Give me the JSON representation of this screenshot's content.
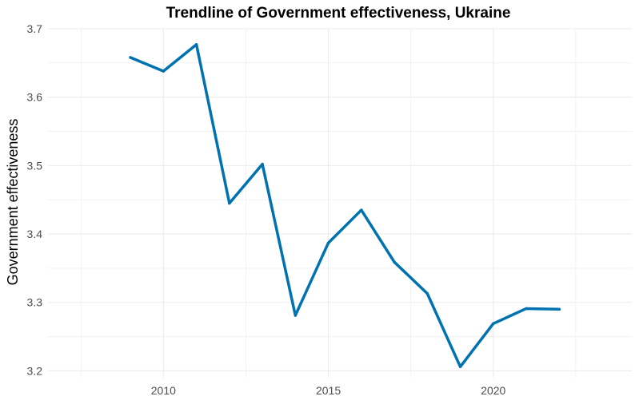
{
  "chart_data": {
    "type": "line",
    "title": "Trendline of Government effectiveness, Ukraine",
    "xlabel": "",
    "ylabel": "Government effectiveness",
    "x": [
      2009,
      2010,
      2011,
      2012,
      2013,
      2014,
      2015,
      2016,
      2017,
      2018,
      2019,
      2020,
      2021,
      2022
    ],
    "series": [
      {
        "values": [
          3.658,
          3.638,
          3.677,
          3.445,
          3.502,
          3.281,
          3.387,
          3.435,
          3.359,
          3.313,
          3.206,
          3.269,
          3.291,
          3.29
        ]
      }
    ],
    "xlim": [
      2006.5,
      2024.2
    ],
    "ylim": [
      3.19,
      3.7
    ],
    "xticks": [
      2010,
      2015,
      2020
    ],
    "xtick_labels": [
      "2010",
      "2015",
      "2020"
    ],
    "yticks": [
      3.2,
      3.3,
      3.4,
      3.5,
      3.6,
      3.7
    ],
    "ytick_labels": [
      "3.2",
      "3.3",
      "3.4",
      "3.5",
      "3.6",
      "3.7"
    ],
    "grid": true,
    "line_color": "#0072B2",
    "grid_color": "#ebebeb"
  }
}
